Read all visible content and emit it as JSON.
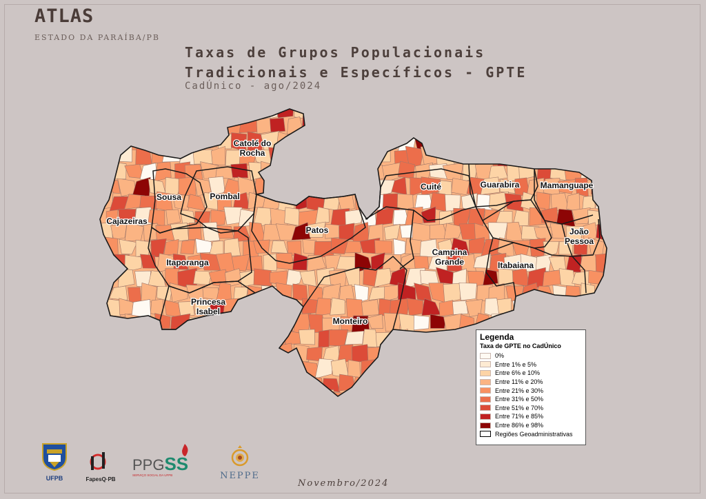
{
  "header": {
    "atlas": "ATLAS",
    "atlas_sub": "ESTADO DA PARAÍBA/PB",
    "title_line1": "Taxas de Grupos Populacionais",
    "title_line2": "Tradicionais e Específicos - GPTE",
    "subtitle": "CadÚnico - ago/2024"
  },
  "regions": [
    {
      "name": "Catolé do Rocha",
      "line1": "Catolé do",
      "line2": "Rocha"
    },
    {
      "name": "Sousa",
      "line1": "Sousa",
      "line2": ""
    },
    {
      "name": "Pombal",
      "line1": "Pombal",
      "line2": ""
    },
    {
      "name": "Cajazeiras",
      "line1": "Cajazeiras",
      "line2": ""
    },
    {
      "name": "Patos",
      "line1": "Patos",
      "line2": ""
    },
    {
      "name": "Itaporanga",
      "line1": "Itaporanga",
      "line2": ""
    },
    {
      "name": "Princesa Isabel",
      "line1": "Princesa",
      "line2": "Isabel"
    },
    {
      "name": "Monteiro",
      "line1": "Monteiro",
      "line2": ""
    },
    {
      "name": "Cuité",
      "line1": "Cuité",
      "line2": ""
    },
    {
      "name": "Guarabira",
      "line1": "Guarabira",
      "line2": ""
    },
    {
      "name": "Mamanguape",
      "line1": "Mamanguape",
      "line2": ""
    },
    {
      "name": "Campina Grande",
      "line1": "Campina",
      "line2": "Grande"
    },
    {
      "name": "Itabaiana",
      "line1": "Itabaiana",
      "line2": ""
    },
    {
      "name": "João Pessoa",
      "line1": "João",
      "line2": "Pessoa"
    }
  ],
  "legend": {
    "title": "Legenda",
    "subtitle": "Taxa de GPTE no CadÚnico",
    "classes": [
      {
        "label": "0%",
        "color": "#fffaf3"
      },
      {
        "label": "Entre 1% e 5%",
        "color": "#feebd3"
      },
      {
        "label": "Entre 6% e 10%",
        "color": "#fdd4a6"
      },
      {
        "label": "Entre 11% e 20%",
        "color": "#fbb483"
      },
      {
        "label": "Entre 21% e 30%",
        "color": "#f89162"
      },
      {
        "label": "Entre 31% e 50%",
        "color": "#ec6e4b"
      },
      {
        "label": "Entre 51% e 70%",
        "color": "#dc4b38"
      },
      {
        "label": "Entre 71% e 85%",
        "color": "#c02222"
      },
      {
        "label": "Entre 86% e 98%",
        "color": "#8d0505"
      }
    ],
    "boundary_label": "Regiões Geoadministrativas"
  },
  "logos": {
    "ufpb": "UFPB",
    "fapesq": "FapesQ·PB",
    "ppg": "PPG",
    "ss": "SS",
    "ppg_sub": "SERVIÇO SOCIAL DA UFPB",
    "neppe": "NEPPE"
  },
  "footer": "Novembro/2024"
}
